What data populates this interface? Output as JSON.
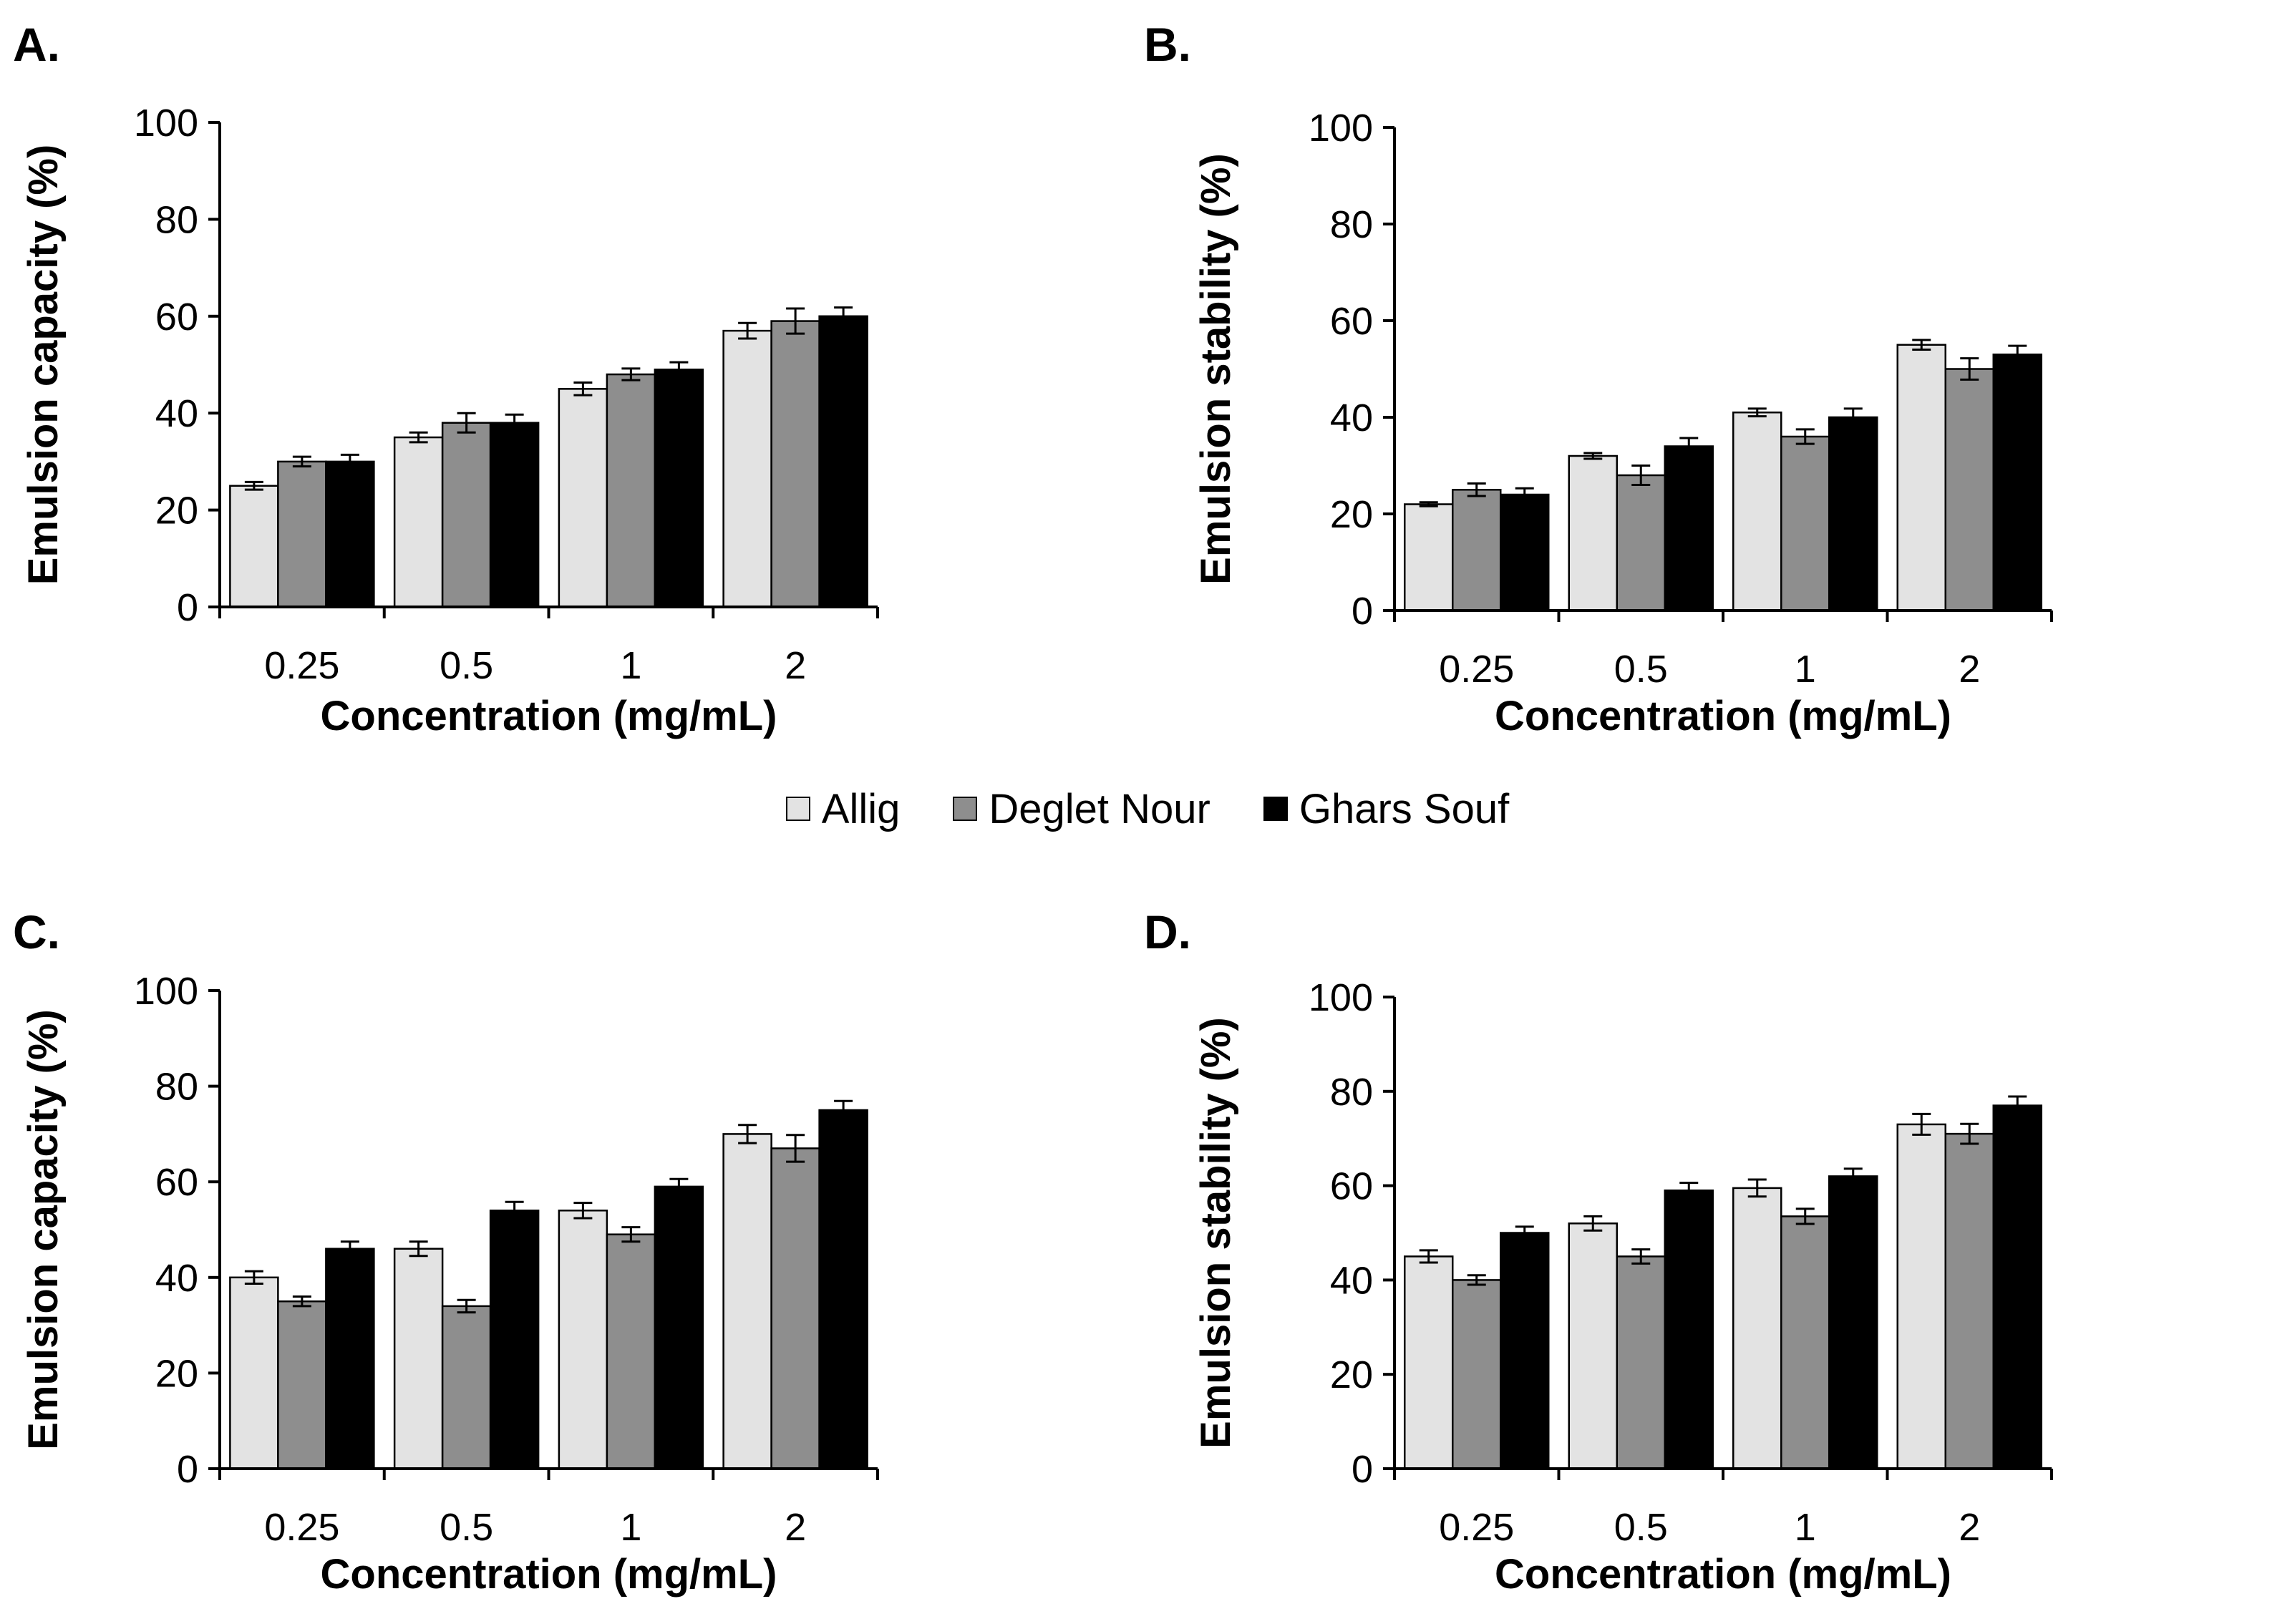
{
  "legend": {
    "items": [
      {
        "name": "Allig",
        "color": "#e3e3e3"
      },
      {
        "name": "Deglet Nour",
        "color": "#8e8e8e"
      },
      {
        "name": "Ghars Souf",
        "color": "#000000"
      }
    ]
  },
  "chart_data": [
    {
      "panel": "A.",
      "type": "bar",
      "xlabel": "Concentration (mg/mL)",
      "ylabel": "Emulsion capacity (%)",
      "ylim": [
        0,
        100
      ],
      "yticks": [
        0,
        20,
        40,
        60,
        80,
        100
      ],
      "categories": [
        "0.25",
        "0.5",
        "1",
        "2"
      ],
      "series": [
        {
          "name": "Allig",
          "values": [
            25,
            35,
            45,
            57
          ],
          "errors": [
            0.8,
            1.0,
            1.3,
            1.6
          ]
        },
        {
          "name": "Deglet Nour",
          "values": [
            30,
            38,
            48,
            59
          ],
          "errors": [
            1.0,
            2.0,
            1.2,
            2.6
          ]
        },
        {
          "name": "Ghars Souf",
          "values": [
            30,
            38,
            49,
            60
          ],
          "errors": [
            1.4,
            1.7,
            1.5,
            1.8
          ]
        }
      ]
    },
    {
      "panel": "B.",
      "type": "bar",
      "xlabel": "Concentration (mg/mL)",
      "ylabel": "Emulsion stability (%)",
      "ylim": [
        0,
        100
      ],
      "yticks": [
        0,
        20,
        40,
        60,
        80,
        100
      ],
      "categories": [
        "0.25",
        "0.5",
        "1",
        "2"
      ],
      "series": [
        {
          "name": "Allig",
          "values": [
            22,
            32,
            41,
            55
          ],
          "errors": [
            0.4,
            0.6,
            0.8,
            1.0
          ]
        },
        {
          "name": "Deglet Nour",
          "values": [
            25,
            28,
            36,
            50
          ],
          "errors": [
            1.3,
            2.0,
            1.5,
            2.2
          ]
        },
        {
          "name": "Ghars Souf",
          "values": [
            24,
            34,
            40,
            53
          ],
          "errors": [
            1.3,
            1.7,
            1.8,
            1.8
          ]
        }
      ]
    },
    {
      "panel": "C.",
      "type": "bar",
      "xlabel": "Concentration (mg/mL)",
      "ylabel": "Emulsion capacity (%)",
      "ylim": [
        0,
        100
      ],
      "yticks": [
        0,
        20,
        40,
        60,
        80,
        100
      ],
      "categories": [
        "0.25",
        "0.5",
        "1",
        "2"
      ],
      "series": [
        {
          "name": "Allig",
          "values": [
            40,
            46,
            54,
            70
          ],
          "errors": [
            1.3,
            1.5,
            1.6,
            1.9
          ]
        },
        {
          "name": "Deglet Nour",
          "values": [
            35,
            34,
            49,
            67
          ],
          "errors": [
            1.0,
            1.3,
            1.5,
            2.8
          ]
        },
        {
          "name": "Ghars Souf",
          "values": [
            46,
            54,
            59,
            75
          ],
          "errors": [
            1.5,
            1.8,
            1.6,
            1.9
          ]
        }
      ]
    },
    {
      "panel": "D.",
      "type": "bar",
      "xlabel": "Concentration (mg/mL)",
      "ylabel": "Emulsion stability (%)",
      "ylim": [
        0,
        100
      ],
      "yticks": [
        0,
        20,
        40,
        60,
        80,
        100
      ],
      "categories": [
        "0.25",
        "0.5",
        "1",
        "2"
      ],
      "series": [
        {
          "name": "Allig",
          "values": [
            45,
            52,
            59.5,
            73
          ],
          "errors": [
            1.3,
            1.5,
            1.8,
            2.2
          ]
        },
        {
          "name": "Deglet Nour",
          "values": [
            40,
            45,
            53.5,
            71
          ],
          "errors": [
            1.0,
            1.5,
            1.6,
            2.1
          ]
        },
        {
          "name": "Ghars Souf",
          "values": [
            50,
            59,
            62,
            77
          ],
          "errors": [
            1.3,
            1.6,
            1.6,
            1.9
          ]
        }
      ]
    }
  ]
}
